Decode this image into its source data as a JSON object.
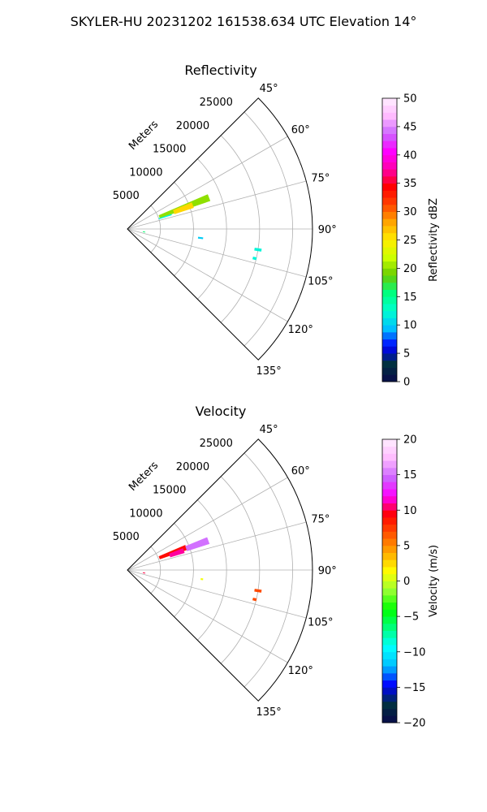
{
  "figure": {
    "title": "SKYLER-HU  20231202  161538.634 UTC Elevation 14°"
  },
  "chart_data": [
    {
      "type": "polar-sector",
      "title": "Reflectivity",
      "radial_label": "Meters",
      "radial_ticks": [
        5000,
        10000,
        15000,
        20000,
        25000
      ],
      "radial_max": 28000,
      "azimuth_range_deg": [
        45,
        135
      ],
      "azimuth_ticks": [
        "45°",
        "60°",
        "75°",
        "90°",
        "105°",
        "120°",
        "135°"
      ],
      "grid": true,
      "colorbar": {
        "label": "Reflectivity dBZ",
        "range": [
          0,
          50
        ],
        "ticks": [
          "0",
          "5",
          "10",
          "15",
          "20",
          "25",
          "30",
          "35",
          "40",
          "45",
          "50"
        ],
        "stops": [
          "#0a0a4a",
          "#003040",
          "#0000ff",
          "#00bfff",
          "#00ffd0",
          "#00ff80",
          "#66cc00",
          "#ccff00",
          "#ffee00",
          "#ffa500",
          "#ff4500",
          "#ff0000",
          "#ff00aa",
          "#ff00ff",
          "#cc66ff",
          "#ffbbff",
          "#ffeeff"
        ]
      },
      "echoes": [
        {
          "az": 69,
          "r_min": 5200,
          "r_max": 13200,
          "value": 20
        },
        {
          "az": 70,
          "r_min": 7500,
          "r_max": 10500,
          "value": 26
        },
        {
          "az": 72,
          "r_min": 5000,
          "r_max": 7000,
          "value": 12
        },
        {
          "az": 97,
          "r_min": 10800,
          "r_max": 11500,
          "value": 10
        },
        {
          "az": 99,
          "r_min": 19500,
          "r_max": 20500,
          "value": 12
        },
        {
          "az": 103,
          "r_min": 19500,
          "r_max": 20000,
          "value": 12
        },
        {
          "az": 100,
          "r_min": 2400,
          "r_max": 2700,
          "value": 16
        }
      ]
    },
    {
      "type": "polar-sector",
      "title": "Velocity",
      "radial_label": "Meters",
      "radial_ticks": [
        5000,
        10000,
        15000,
        20000,
        25000
      ],
      "radial_max": 28000,
      "azimuth_range_deg": [
        45,
        135
      ],
      "azimuth_ticks": [
        "45°",
        "60°",
        "75°",
        "90°",
        "105°",
        "120°",
        "135°"
      ],
      "grid": true,
      "colorbar": {
        "label": "Velocity (m/s)",
        "range": [
          -20,
          20
        ],
        "ticks": [
          "−20",
          "−15",
          "−10",
          "−5",
          "0",
          "5",
          "10",
          "15",
          "20"
        ],
        "stops": [
          "#0a0a4a",
          "#003040",
          "#0000ff",
          "#00bfff",
          "#00ffff",
          "#00ff80",
          "#00ff00",
          "#99ff33",
          "#ffff00",
          "#ffaa00",
          "#ff5500",
          "#ff0000",
          "#ff00ff",
          "#cc66ff",
          "#ffbbff",
          "#ffeeff"
        ]
      },
      "echoes": [
        {
          "az": 69,
          "r_min": 5200,
          "r_max": 9500,
          "value": 9
        },
        {
          "az": 70,
          "r_min": 9500,
          "r_max": 13000,
          "value": 15
        },
        {
          "az": 71,
          "r_min": 6800,
          "r_max": 9000,
          "value": 11
        },
        {
          "az": 97,
          "r_min": 11200,
          "r_max": 11500,
          "value": 1
        },
        {
          "az": 99,
          "r_min": 19500,
          "r_max": 20500,
          "value": 7
        },
        {
          "az": 103,
          "r_min": 19500,
          "r_max": 20000,
          "value": 7
        },
        {
          "az": 100,
          "r_min": 2400,
          "r_max": 2700,
          "value": 10
        }
      ]
    }
  ]
}
